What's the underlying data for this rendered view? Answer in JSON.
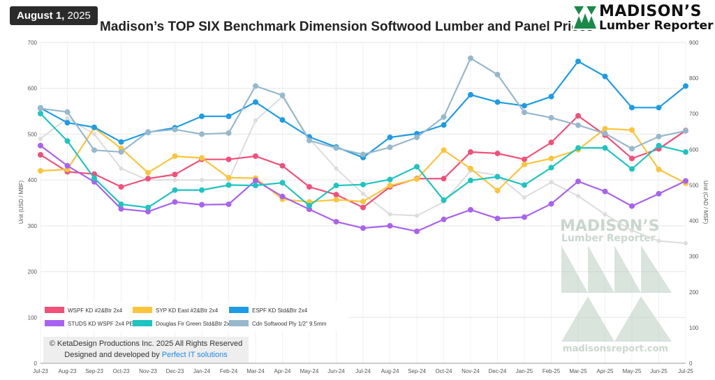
{
  "header": {
    "date_bold": "August 1,",
    "date_year": " 2025",
    "title": "Madison’s TOP SIX Benchmark Dimension Softwood Lumber and Panel Prices"
  },
  "logo": {
    "name": "MADISON’S",
    "subtitle": "Lumber Reporter",
    "mark_color": "#1a8a4a"
  },
  "watermark": {
    "name": "MADISON’S",
    "subtitle": "Lumber Reporter",
    "url": "madisonsreport.com"
  },
  "copyright": {
    "line1": "© KetaDesign Productions Inc. 2025 All Rights Reserved",
    "line2_prefix": "Designed and developed by ",
    "line2_link": "Perfect IT solutions"
  },
  "chart_data": {
    "type": "line",
    "categories": [
      "Jul-23",
      "Aug-23",
      "Sep-23",
      "Oct-23",
      "Nov-23",
      "Dec-23",
      "Jan-24",
      "Feb-24",
      "Mar-24",
      "Apr-24",
      "May-24",
      "Jun-24",
      "Jul-24",
      "Aug-24",
      "Sep-24",
      "Oct-24",
      "Nov-24",
      "Dec-24",
      "Jan-25",
      "Feb-25",
      "Mar-25",
      "Apr-25",
      "May-25",
      "Jun-25",
      "Jul-25"
    ],
    "ylabel_left": "Unit (USD / MBF)",
    "ylabel_right": "Unit (CAD / MSF)",
    "ylim_left": [
      0,
      700
    ],
    "ylim_right": [
      0,
      900
    ],
    "yticks_left": [
      0,
      100,
      200,
      300,
      400,
      500,
      600,
      700
    ],
    "yticks_right": [
      0,
      100,
      200,
      300,
      400,
      500,
      600,
      700,
      800,
      900
    ],
    "grid": true,
    "legend_position": "bottom-left",
    "series": [
      {
        "name": "WSPF KD #2&Btr 2x4",
        "color": "#f0507a",
        "axis": "left",
        "values": [
          455,
          418,
          413,
          385,
          403,
          412,
          445,
          445,
          452,
          431,
          385,
          368,
          340,
          385,
          403,
          403,
          461,
          458,
          445,
          482,
          540,
          498,
          447,
          468,
          508
        ]
      },
      {
        "name": "SYP KD East #2&Btr 2x4",
        "color": "#fbc53b",
        "axis": "left",
        "values": [
          420,
          423,
          514,
          469,
          416,
          452,
          448,
          405,
          404,
          358,
          352,
          357,
          353,
          388,
          402,
          465,
          425,
          377,
          434,
          447,
          466,
          512,
          509,
          423,
          393
        ]
      },
      {
        "name": "ESPF KD Std&Btr 2x4",
        "color": "#1e9be6",
        "axis": "left",
        "values": [
          557,
          525,
          515,
          483,
          504,
          514,
          539,
          539,
          570,
          531,
          494,
          472,
          449,
          493,
          501,
          520,
          586,
          570,
          562,
          582,
          659,
          626,
          558,
          558,
          605
        ]
      },
      {
        "name": "STUDS KD WSPF 2x4 PET",
        "color": "#a862f0",
        "axis": "left",
        "values": [
          475,
          431,
          396,
          337,
          331,
          352,
          346,
          347,
          399,
          364,
          336,
          309,
          295,
          300,
          288,
          314,
          335,
          316,
          319,
          348,
          397,
          375,
          343,
          370,
          398
        ]
      },
      {
        "name": "Douglas Fir Green Std&Btr 2x4",
        "color": "#1ec4c0",
        "axis": "left",
        "values": [
          545,
          485,
          404,
          347,
          340,
          378,
          378,
          389,
          388,
          394,
          344,
          388,
          390,
          401,
          429,
          356,
          399,
          407,
          389,
          427,
          470,
          470,
          424,
          475,
          461
        ]
      },
      {
        "name": "Cdn Softwood Ply 1/2\" 9.5mm",
        "color": "#97b8cc",
        "axis": "right",
        "values": [
          715,
          705,
          598,
          593,
          649,
          656,
          643,
          646,
          778,
          752,
          625,
          604,
          586,
          606,
          634,
          691,
          856,
          810,
          704,
          689,
          668,
          645,
          602,
          636,
          652
        ]
      }
    ],
    "background_series": [
      {
        "color": "#dcdcdc",
        "axis": "left",
        "values": [
          490,
          535,
          500,
          425,
          400,
          400,
          400,
          400,
          530,
          582,
          490,
          425,
          370,
          325,
          322,
          352,
          420,
          410,
          362,
          395,
          365,
          325,
          290,
          267,
          262
        ]
      }
    ]
  }
}
